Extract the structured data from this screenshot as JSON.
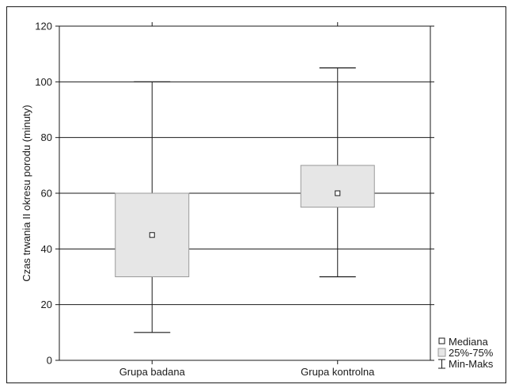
{
  "chart_data": {
    "type": "boxplot",
    "title": "",
    "xlabel": "",
    "ylabel": "Czas trwania II okresu porodu (minuty)",
    "ylim": [
      0,
      120
    ],
    "yticks": [
      0,
      20,
      40,
      60,
      80,
      100,
      120
    ],
    "grid": true,
    "legend_position": "bottom-right",
    "categories": [
      "Grupa badana",
      "Grupa kontrolna"
    ],
    "boxes": [
      {
        "category": "Grupa badana",
        "min": 10,
        "q1": 30,
        "median": 45,
        "q3": 60,
        "max": 100
      },
      {
        "category": "Grupa kontrolna",
        "min": 30,
        "q1": 55,
        "median": 60,
        "q3": 70,
        "max": 105
      }
    ],
    "legend": [
      {
        "key": "median",
        "label": "Mediana"
      },
      {
        "key": "box",
        "label": "25%-75%"
      },
      {
        "key": "whisker",
        "label": "Min-Maks"
      }
    ],
    "colors": {
      "box_fill": "#e6e6e6",
      "box_stroke": "#9a9a9a",
      "line": "#1a1a1a"
    }
  }
}
